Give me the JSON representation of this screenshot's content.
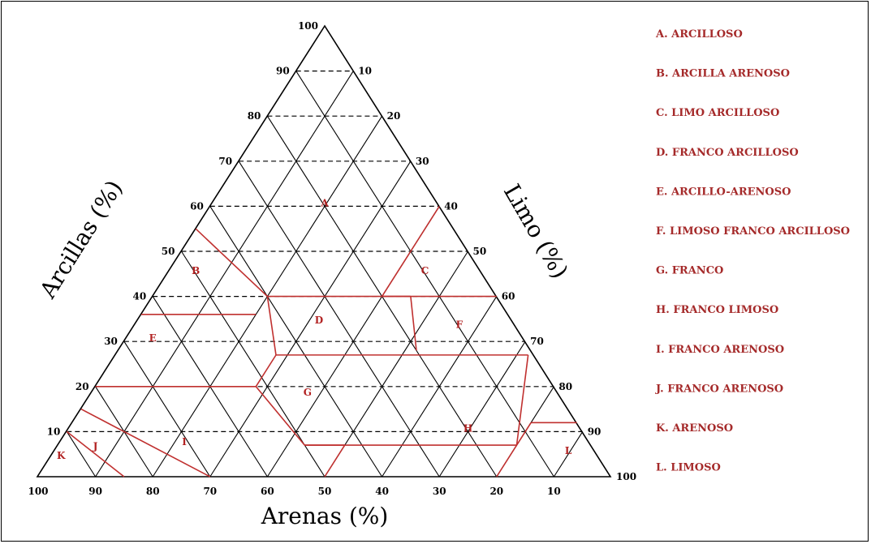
{
  "diagram": {
    "axes": {
      "clay_title": "Arcillas (%)",
      "silt_title": "Limo (%)",
      "sand_title": "Arenas (%)",
      "apex_label": "100",
      "clay_ticks": [
        "90",
        "80",
        "70",
        "60",
        "50",
        "40",
        "30",
        "20",
        "10"
      ],
      "silt_ticks": [
        "10",
        "20",
        "30",
        "40",
        "50",
        "60",
        "70",
        "80",
        "90",
        "100"
      ],
      "sand_ticks": [
        "100",
        "90",
        "80",
        "70",
        "60",
        "50",
        "40",
        "30",
        "20",
        "10"
      ]
    },
    "regions": [
      "A",
      "B",
      "C",
      "D",
      "E",
      "F",
      "G",
      "H",
      "I",
      "J",
      "K",
      "L"
    ]
  },
  "legend": [
    "A. ARCILLOSO",
    "B. ARCILLA ARENOSO",
    "C. LIMO ARCILLOSO",
    "D. FRANCO ARCILLOSO",
    "E.  ARCILLO-ARENOSO",
    "F. LIMOSO FRANCO ARCILLOSO",
    "G. FRANCO",
    "H. FRANCO LIMOSO",
    "I. FRANCO ARENOSO",
    "J. FRANCO ARENOSO",
    "K. ARENOSO",
    "L. LIMOSO"
  ],
  "colors": {
    "boundary": "#c0302f",
    "legend": "#a52a2a",
    "grid": "#000000"
  }
}
